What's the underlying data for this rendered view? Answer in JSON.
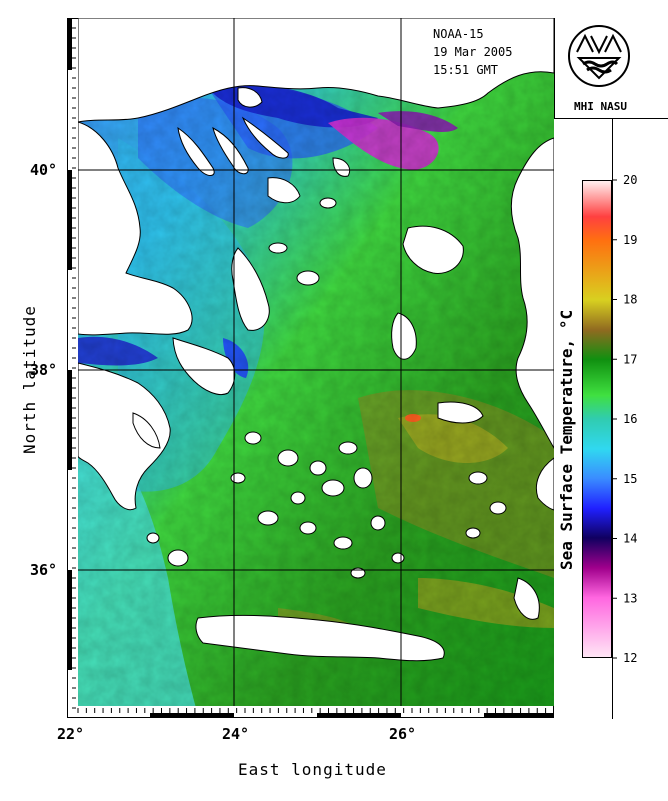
{
  "satellite": {
    "name": "NOAA-15",
    "date": "19 Mar 2005",
    "time": "15:51 GMT"
  },
  "logo": {
    "text": "MHI NASU",
    "icon": "institute-logo-icon"
  },
  "axes": {
    "x_title": "East longitude",
    "y_title": "North latitude",
    "x_ticks": [
      "22°",
      "24°",
      "26°"
    ],
    "y_ticks": [
      "40°",
      "38°",
      "36°"
    ]
  },
  "colorbar": {
    "title": "Sea Surface Temperature, °C",
    "ticks": [
      "20",
      "19",
      "18",
      "17",
      "16",
      "15",
      "14",
      "13",
      "12"
    ],
    "range": [
      12,
      20
    ],
    "stops": [
      {
        "value": 12,
        "color": "#ffe6f5"
      },
      {
        "value": 13,
        "color": "#ff66e0"
      },
      {
        "value": 13.5,
        "color": "#a0008c"
      },
      {
        "value": 14,
        "color": "#100060"
      },
      {
        "value": 14.5,
        "color": "#2020ff"
      },
      {
        "value": 15,
        "color": "#3a8cff"
      },
      {
        "value": 15.5,
        "color": "#30d8f0"
      },
      {
        "value": 16,
        "color": "#30ccb0"
      },
      {
        "value": 16.4,
        "color": "#40e040"
      },
      {
        "value": 17,
        "color": "#109010"
      },
      {
        "value": 17.5,
        "color": "#906a20"
      },
      {
        "value": 18,
        "color": "#d8d020"
      },
      {
        "value": 19,
        "color": "#ff7010"
      },
      {
        "value": 19.4,
        "color": "#ff4040"
      },
      {
        "value": 20,
        "color": "#fff0f0"
      }
    ]
  },
  "colors": {
    "land": "#ffffff",
    "coastline": "#000000",
    "gridline": "#000000"
  }
}
